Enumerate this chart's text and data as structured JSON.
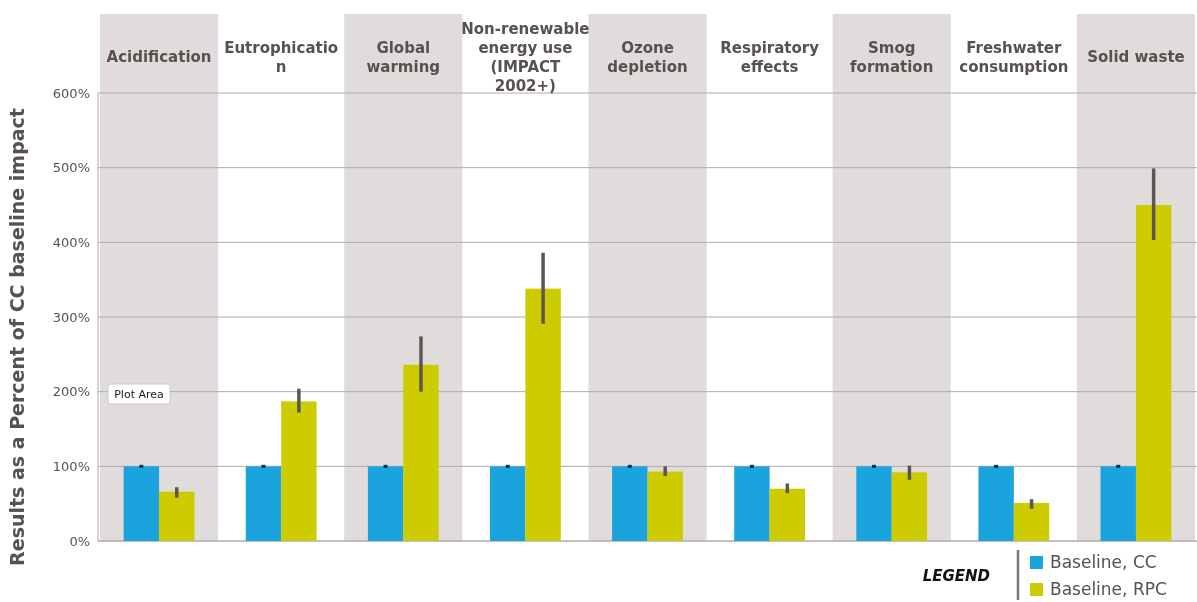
{
  "chart_data": {
    "type": "bar",
    "ylabel": "Results as a Percent of CC baseline impact",
    "categories": [
      "Acidification",
      "Eutrophication",
      "Global warming",
      "Non-renewable energy use (IMPACT 2002+)",
      "Ozone depletion",
      "Respiratory effects",
      "Smog formation",
      "Freshwater consumption",
      "Solid waste"
    ],
    "series": [
      {
        "name": "Baseline, CC",
        "color": "#1ba3dd",
        "values": [
          100,
          100,
          100,
          100,
          100,
          100,
          100,
          100,
          100
        ],
        "errors": [
          2,
          2,
          2,
          2,
          2,
          2,
          2,
          2,
          2
        ]
      },
      {
        "name": "Baseline, RPC",
        "color": "#cccc00",
        "values": [
          66,
          187,
          236,
          338,
          93,
          70,
          92,
          51,
          450
        ],
        "errors": [
          [
            58,
            72
          ],
          [
            172,
            204
          ],
          [
            200,
            274
          ],
          [
            291,
            386
          ],
          [
            87,
            100
          ],
          [
            64,
            77
          ],
          [
            82,
            101
          ],
          [
            43,
            56
          ],
          [
            403,
            499
          ]
        ]
      }
    ],
    "ylim": [
      0,
      600
    ],
    "yticks": [
      {
        "value": 0,
        "label": "0%"
      },
      {
        "value": 100,
        "label": "100%"
      },
      {
        "value": 200,
        "label": "200%"
      },
      {
        "value": 300,
        "label": "300%"
      },
      {
        "value": 400,
        "label": "400%"
      },
      {
        "value": 500,
        "label": "500%"
      },
      {
        "value": 600,
        "label": "600%"
      }
    ],
    "grid": "y",
    "legend": "bottom right",
    "legend_title": "LEGEND",
    "annotations": [
      "Plot Area"
    ]
  }
}
